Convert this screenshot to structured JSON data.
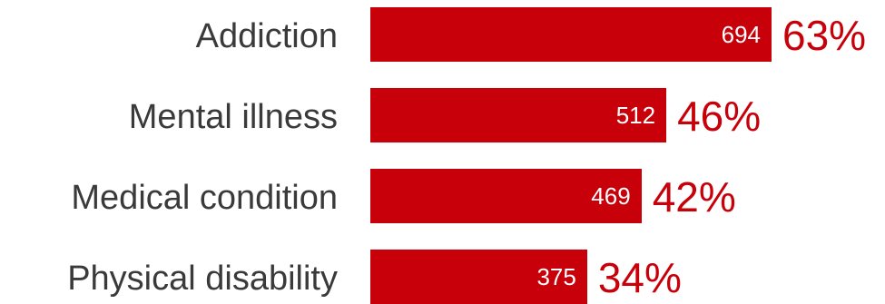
{
  "colors": {
    "bar": "#c8000a",
    "percent_text": "#c8000a",
    "label_text": "#3a3a3a",
    "value_text": "#ffffff"
  },
  "chart_data": {
    "type": "bar",
    "orientation": "horizontal",
    "categories": [
      "Addiction",
      "Mental illness",
      "Medical condition",
      "Physical disability"
    ],
    "values": [
      694,
      512,
      469,
      375
    ],
    "percent_labels": [
      "63%",
      "46%",
      "42%",
      "34%"
    ],
    "grid": false,
    "legend": "none",
    "title": "",
    "xlabel": "",
    "ylabel": ""
  }
}
